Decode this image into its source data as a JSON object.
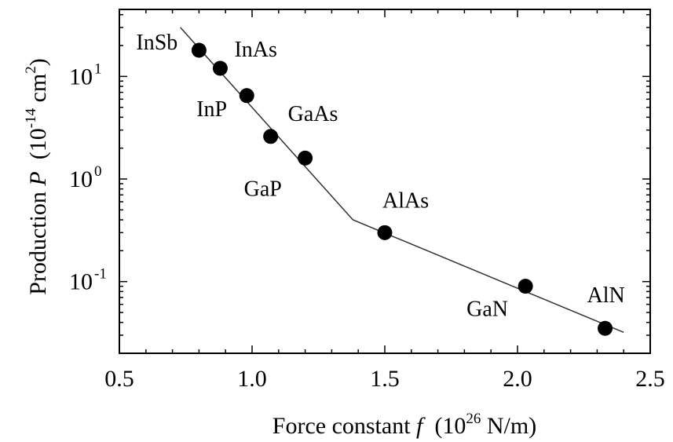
{
  "chart_data": {
    "type": "scatter",
    "xlabel": {
      "main": "Force constant ",
      "var": "f",
      "unit_pre": "  (10",
      "unit_exp": "26",
      "unit_post": " N/m)"
    },
    "ylabel": {
      "main": "Production ",
      "var": "P",
      "unit_pre": "  (10",
      "unit_exp": "-14",
      "unit_mid": " cm",
      "unit_exp2": "2",
      "unit_post": ")"
    },
    "xlim": [
      0.5,
      2.5
    ],
    "ylim": [
      0.02,
      45
    ],
    "yscale": "log",
    "grid": false,
    "x_ticks": [
      {
        "value": 0.5,
        "label": "0.5"
      },
      {
        "value": 1.0,
        "label": "1.0"
      },
      {
        "value": 1.5,
        "label": "1.5"
      },
      {
        "value": 2.0,
        "label": "2.0"
      },
      {
        "value": 2.5,
        "label": "2.5"
      }
    ],
    "y_ticks": [
      {
        "value": 0.1,
        "base": "10",
        "exp": "-1"
      },
      {
        "value": 1,
        "base": "10",
        "exp": "0"
      },
      {
        "value": 10,
        "base": "10",
        "exp": "1"
      }
    ],
    "points": [
      {
        "label": "InSb",
        "x": 0.8,
        "y": 18
      },
      {
        "label": "InAs",
        "x": 0.88,
        "y": 12
      },
      {
        "label": "InP",
        "x": 0.98,
        "y": 6.5
      },
      {
        "label": "GaAs",
        "x": 1.07,
        "y": 2.6
      },
      {
        "label": "GaP",
        "x": 1.2,
        "y": 1.6
      },
      {
        "label": "AlAs",
        "x": 1.5,
        "y": 0.3
      },
      {
        "label": "GaN",
        "x": 2.03,
        "y": 0.09
      },
      {
        "label": "AlN",
        "x": 2.33,
        "y": 0.035
      }
    ],
    "fit_line": [
      {
        "x": 0.73,
        "y": 30
      },
      {
        "x": 1.38,
        "y": 0.4
      },
      {
        "x": 2.4,
        "y": 0.032
      }
    ]
  }
}
